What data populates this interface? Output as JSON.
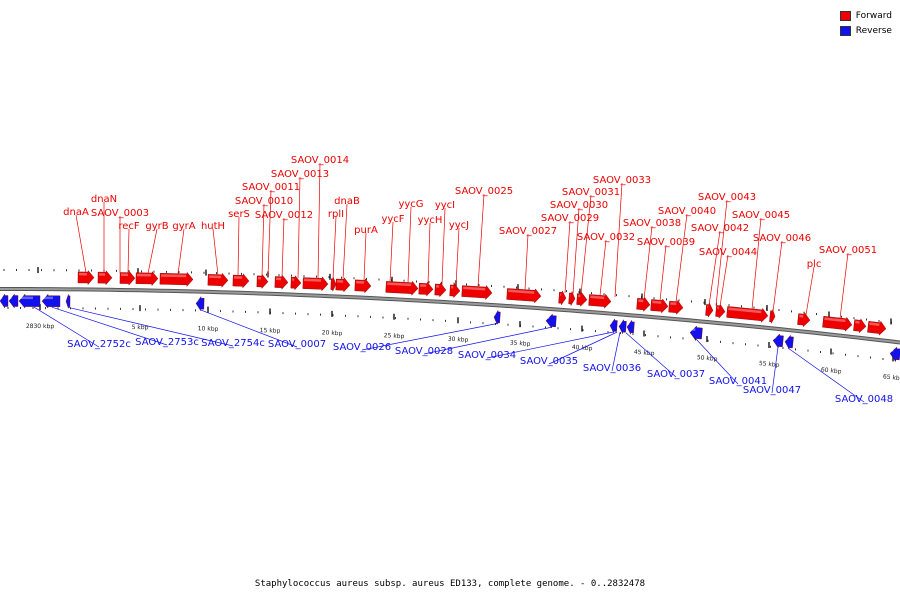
{
  "legend": {
    "items": [
      {
        "label": "Forward",
        "color": "#ee0000"
      },
      {
        "label": "Reverse",
        "color": "#1111ee"
      }
    ]
  },
  "caption": "Staphylococcus aureus subsp. aureus ED133, complete genome. - 0..2832478",
  "colors": {
    "forward": "#ee0000",
    "reverse": "#1111ee",
    "backbone": "#888888"
  },
  "ticks": [
    "2830 kbp",
    "5 kbp",
    "10 kbp",
    "15 kbp",
    "20 kbp",
    "25 kbp",
    "30 kbp",
    "35 kbp",
    "40 kbp",
    "45 kbp",
    "50 kbp",
    "55 kbp",
    "60 kbp",
    "65 kbp"
  ],
  "forward_labels": [
    "dnaA",
    "dnaN",
    "SAOV_0003",
    "recF",
    "gyrB",
    "gyrA",
    "hutH",
    "serS",
    "SAOV_0010",
    "SAOV_0011",
    "SAOV_0012",
    "SAOV_0013",
    "SAOV_0014",
    "rplI",
    "dnaB",
    "purA",
    "yycF",
    "yycG",
    "yycH",
    "yycI",
    "yycJ",
    "SAOV_0025",
    "SAOV_0027",
    "SAOV_0029",
    "SAOV_0030",
    "SAOV_0031",
    "SAOV_0032",
    "SAOV_0033",
    "SAOV_0038",
    "SAOV_0039",
    "SAOV_0040",
    "SAOV_0042",
    "SAOV_0043",
    "SAOV_0044",
    "SAOV_0045",
    "SAOV_0046",
    "plc",
    "SAOV_0051"
  ],
  "reverse_labels": [
    "SAOV_2752c",
    "SAOV_2753c",
    "SAOV_2754c",
    "SAOV_0007",
    "SAOV_0026",
    "SAOV_0028",
    "SAOV_0034",
    "SAOV_0035",
    "SAOV_0036",
    "SAOV_0037",
    "SAOV_0041",
    "SAOV_0047",
    "SAOV_0048"
  ]
}
